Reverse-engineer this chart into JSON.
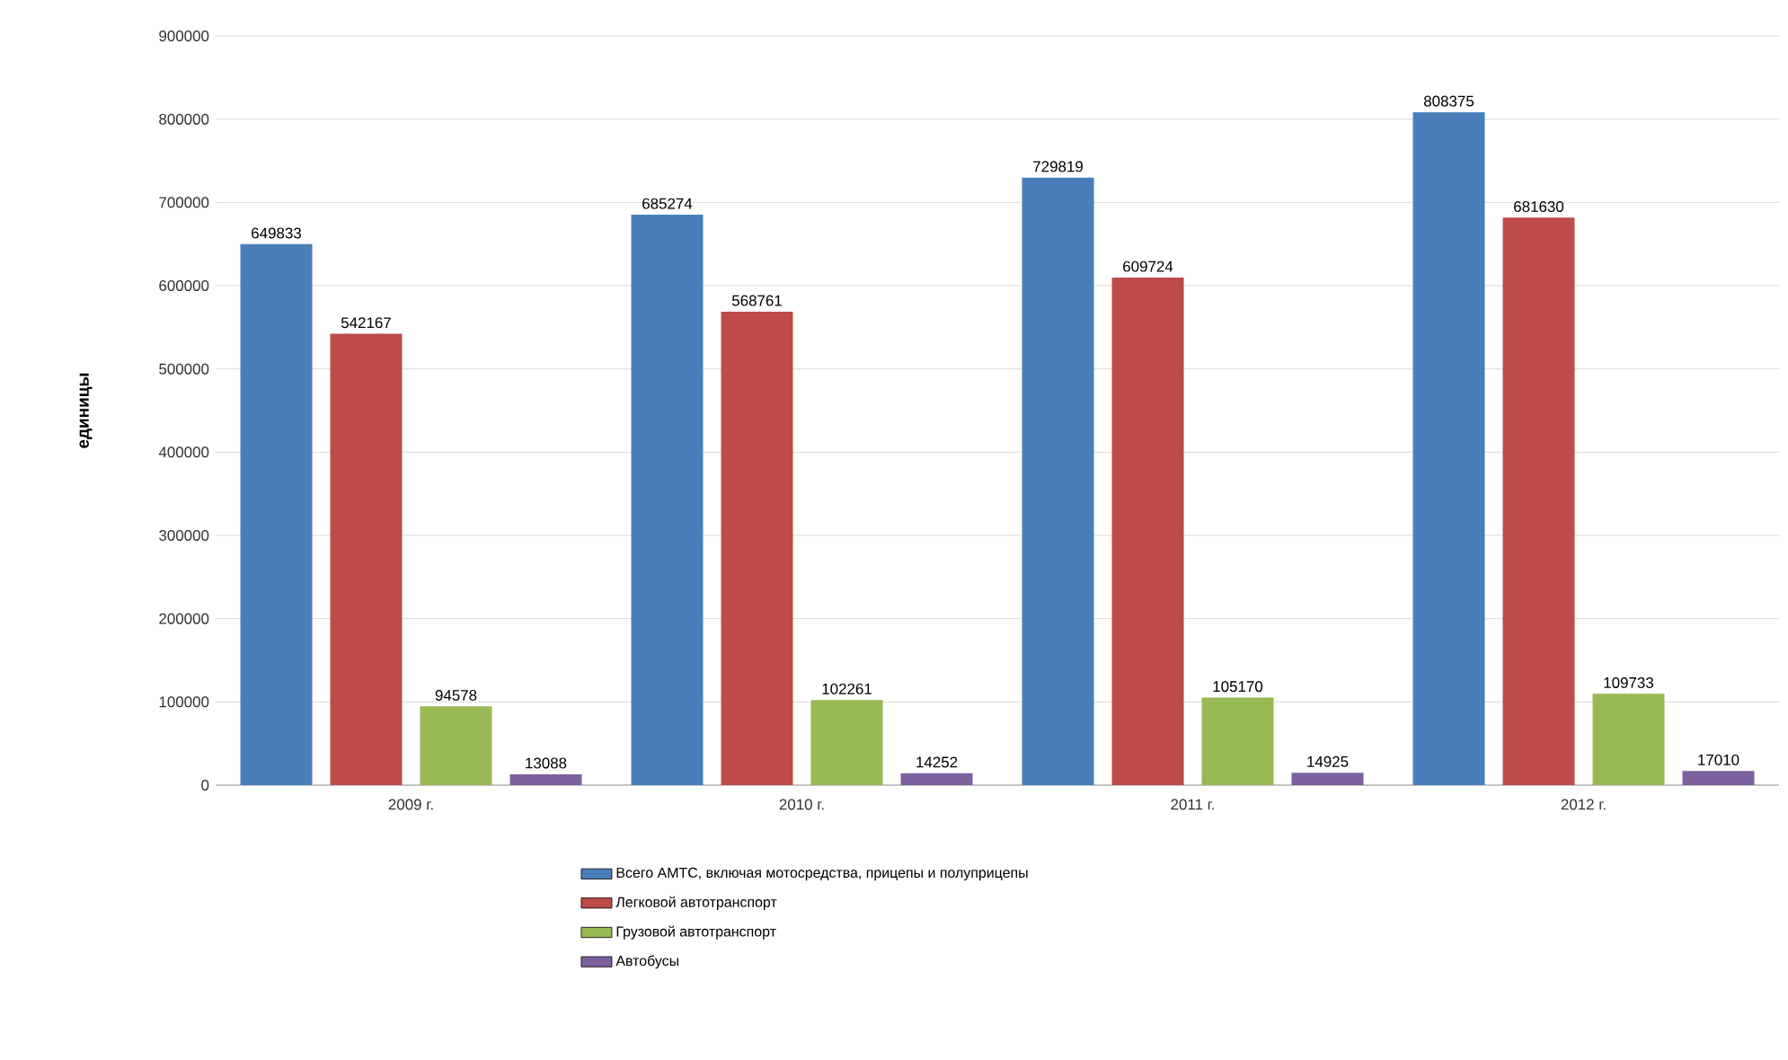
{
  "chart_data": {
    "type": "bar",
    "ylabel": "единицы",
    "categories": [
      "2009 г.",
      "2010 г.",
      "2011 г.",
      "2012 г."
    ],
    "series": [
      {
        "name": "Всего АМТС, включая мотосредства, прицепы и полуприцепы",
        "color": "#4a7ebb",
        "values": [
          649833,
          685274,
          729819,
          808375
        ],
        "value_labels": [
          "649833",
          "685274",
          "729819",
          "808375"
        ]
      },
      {
        "name": "Легковой автотранспорт",
        "color": "#be4b48",
        "values": [
          542167,
          568761,
          609724,
          681630
        ],
        "value_labels": [
          "542167",
          "568761",
          "609724",
          "681630"
        ]
      },
      {
        "name": "Грузовой автотранспорт",
        "color": "#98b954",
        "values": [
          94578,
          102261,
          105170,
          109733
        ],
        "value_labels": [
          "94578",
          "102261",
          "105170",
          "109733"
        ]
      },
      {
        "name": "Автобусы",
        "color": "#7d60a0",
        "values": [
          13088,
          14252,
          14925,
          17010
        ],
        "value_labels": [
          "13088",
          "14252",
          "14925",
          "17010"
        ]
      }
    ],
    "ylim": [
      0,
      900000
    ],
    "yticks": [
      0,
      100000,
      200000,
      300000,
      400000,
      500000,
      600000,
      700000,
      800000,
      900000
    ],
    "grid": "y",
    "legend": "bottom"
  }
}
